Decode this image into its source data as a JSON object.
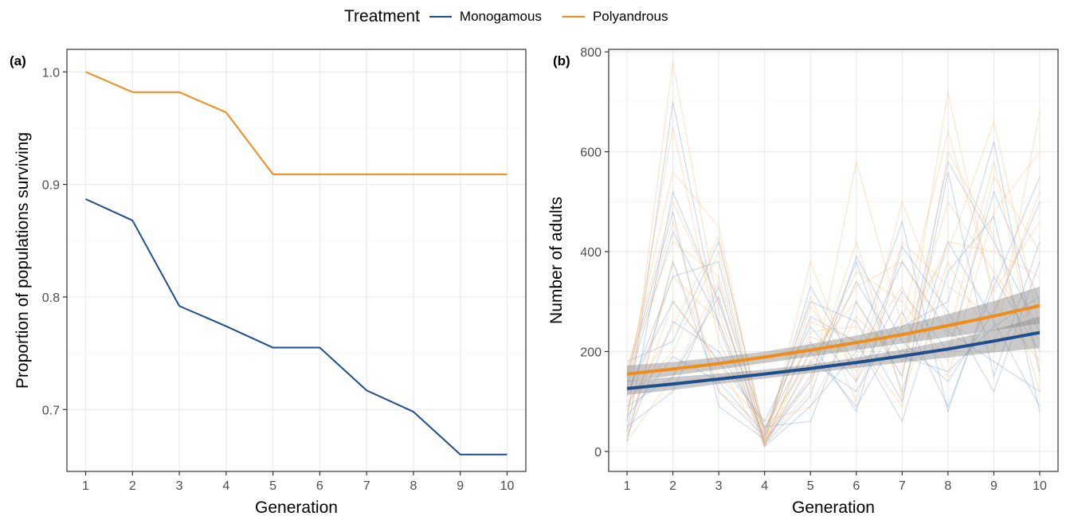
{
  "legend": {
    "title": "Treatment",
    "entries": [
      {
        "label": "Monogamous",
        "color": "#1f4e8c"
      },
      {
        "label": "Polyandrous",
        "color": "#f08c1a"
      }
    ]
  },
  "chart_data": [
    {
      "type": "line",
      "panel_label": "(a)",
      "xlabel": "Generation",
      "ylabel": "Proportion of populations surviving",
      "x": [
        1,
        2,
        3,
        4,
        5,
        6,
        7,
        8,
        9,
        10
      ],
      "x_ticks": [
        "1",
        "2",
        "3",
        "4",
        "5",
        "6",
        "7",
        "8",
        "9",
        "10"
      ],
      "y_ticks": [
        {
          "value": 0.7,
          "label": "0.7"
        },
        {
          "value": 0.8,
          "label": "0.8"
        },
        {
          "value": 0.9,
          "label": "0.9"
        },
        {
          "value": 1.0,
          "label": "1.0"
        }
      ],
      "xlim": [
        0.6,
        10.4
      ],
      "ylim": [
        0.645,
        1.02
      ],
      "grid": true,
      "series": [
        {
          "name": "Monogamous",
          "color": "#1f4e8c",
          "values": [
            0.887,
            0.868,
            0.792,
            0.774,
            0.755,
            0.755,
            0.717,
            0.698,
            0.66,
            0.66
          ]
        },
        {
          "name": "Polyandrous",
          "color": "#f08c1a",
          "values": [
            1.0,
            0.982,
            0.982,
            0.964,
            0.909,
            0.909,
            0.909,
            0.909,
            0.909,
            0.909
          ]
        }
      ]
    },
    {
      "type": "line",
      "panel_label": "(b)",
      "xlabel": "Generation",
      "ylabel": "Number of adults",
      "x": [
        1,
        2,
        3,
        4,
        5,
        6,
        7,
        8,
        9,
        10
      ],
      "x_ticks": [
        "1",
        "2",
        "3",
        "4",
        "5",
        "6",
        "7",
        "8",
        "9",
        "10"
      ],
      "y_ticks": [
        {
          "value": 0,
          "label": "0"
        },
        {
          "value": 200,
          "label": "200"
        },
        {
          "value": 400,
          "label": "400"
        },
        {
          "value": 600,
          "label": "600"
        },
        {
          "value": 800,
          "label": "800"
        }
      ],
      "xlim": [
        0.6,
        10.4
      ],
      "ylim": [
        -40,
        805
      ],
      "grid": true,
      "fitted": [
        {
          "name": "Monogamous",
          "color": "#1f4e8c",
          "values": [
            126,
            135,
            145,
            155,
            166,
            178,
            191,
            205,
            221,
            238
          ],
          "ci_low": [
            113,
            123,
            135,
            146,
            157,
            167,
            178,
            188,
            198,
            207
          ],
          "ci_high": [
            142,
            149,
            156,
            164,
            174,
            188,
            204,
            222,
            244,
            270
          ]
        },
        {
          "name": "Polyandrous",
          "color": "#f08c1a",
          "values": [
            155,
            165,
            176,
            189,
            203,
            218,
            234,
            252,
            271,
            292
          ],
          "ci_low": [
            140,
            152,
            164,
            177,
            190,
            203,
            216,
            229,
            242,
            256
          ],
          "ci_high": [
            172,
            179,
            189,
            200,
            215,
            232,
            252,
            275,
            301,
            330
          ]
        }
      ],
      "population_trajectories": {
        "Monogamous": {
          "color": "#6f96c8",
          "values": [
            [
              40,
              520,
              300,
              20,
              150,
              380,
              120,
              420,
              260,
              90
            ],
            [
              120,
              300,
              180,
              60,
              250,
              140,
              320,
              200,
              520,
              300
            ],
            [
              60,
              700,
              250,
              10,
              90,
              200,
              460,
              80,
              350,
              200
            ],
            [
              180,
              220,
              420,
              40,
              300,
              260,
              100,
              560,
              150,
              420
            ],
            [
              20,
              380,
              120,
              30,
              200,
              90,
              250,
              300,
              620,
              160
            ],
            [
              90,
              150,
              310,
              15,
              110,
              390,
              220,
              140,
              280,
              500
            ],
            [
              150,
              480,
              90,
              25,
              330,
              170,
              380,
              240,
              180,
              120
            ],
            [
              30,
              260,
              200,
              50,
              60,
              300,
              150,
              580,
              420,
              240
            ],
            [
              110,
              350,
              380,
              10,
              180,
              120,
              280,
              90,
              330,
              550
            ],
            [
              70,
              190,
              140,
              35,
              270,
              220,
              60,
              360,
              470,
              80
            ],
            [
              130,
              440,
              260,
              20,
              140,
              340,
              190,
              160,
              250,
              310
            ],
            [
              50,
              120,
              330,
              45,
              220,
              80,
              410,
              280,
              120,
              380
            ]
          ]
        },
        "Polyandrous": {
          "color": "#f5b56a",
          "values": [
            [
              60,
              780,
              280,
              15,
              200,
              300,
              150,
              720,
              300,
              180
            ],
            [
              150,
              560,
              450,
              20,
              120,
              580,
              250,
              400,
              660,
              250
            ],
            [
              40,
              300,
              180,
              10,
              380,
              140,
              500,
              260,
              200,
              680
            ],
            [
              170,
              420,
              350,
              40,
              260,
              220,
              90,
              600,
              430,
              120
            ],
            [
              90,
              250,
              430,
              25,
              170,
              360,
              300,
              180,
              550,
              400
            ],
            [
              120,
              650,
              220,
              30,
              310,
              100,
              420,
              330,
              270,
              520
            ],
            [
              30,
              380,
              150,
              60,
              90,
              270,
              180,
              500,
              360,
              220
            ],
            [
              100,
              200,
              400,
              15,
              230,
              190,
              330,
              150,
              480,
              600
            ],
            [
              160,
              500,
              300,
              35,
              140,
              420,
              110,
              380,
              210,
              300
            ],
            [
              80,
              350,
              260,
              20,
              290,
              160,
              260,
              640,
              320,
              460
            ],
            [
              140,
              460,
              120,
              50,
              180,
              330,
              380,
              230,
              580,
              150
            ],
            [
              20,
              150,
              340,
              10,
              240,
              250,
              200,
              420,
              400,
              350
            ]
          ]
        }
      }
    }
  ]
}
